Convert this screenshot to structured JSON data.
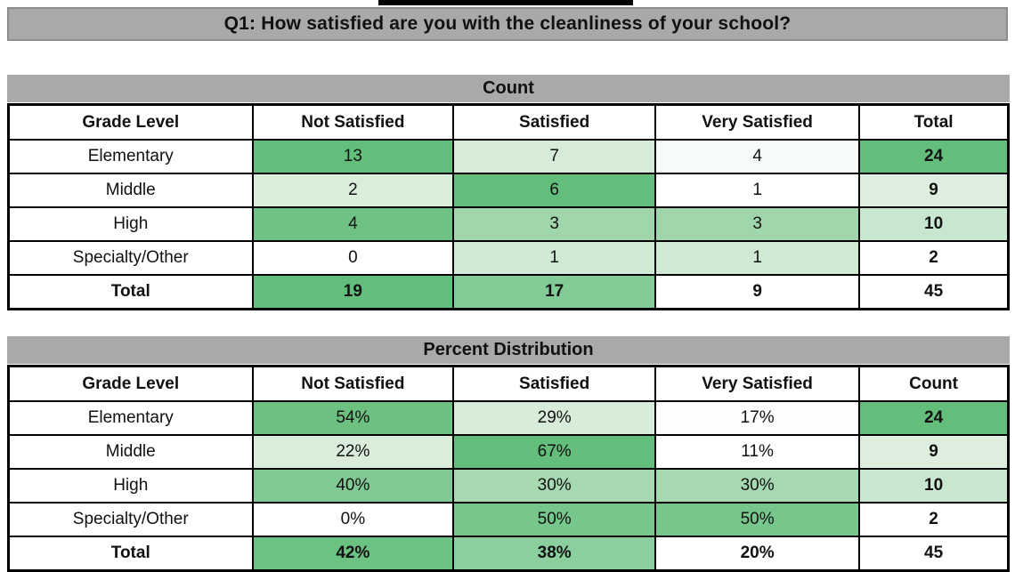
{
  "decor": {
    "top_strip_color": "#000000",
    "bottom_strip_color": "#d9d9d9",
    "band_gray": "#a9a9a9",
    "accent_green": "#63be7b"
  },
  "title_bar": {
    "text": "Q1: How satisfied are you with the cleanliness of your school?"
  },
  "count_table": {
    "title": "Count",
    "columns": [
      "Grade Level",
      "Not Satisfied",
      "Satisfied",
      "Very Satisfied",
      "Total"
    ],
    "rows": [
      {
        "label": "Elementary",
        "v1": "13",
        "v2": "7",
        "v3": "4",
        "v4": "24",
        "b1": "#63be7b",
        "b2": "#d6ebd8",
        "b3": "#f7fbf8",
        "b4": "#63be7b"
      },
      {
        "label": "Middle",
        "v1": "2",
        "v2": "6",
        "v3": "1",
        "v4": "9",
        "b1": "#daedda",
        "b2": "#63be7b",
        "b3": "#ffffff",
        "b4": "#ddeede"
      },
      {
        "label": "High",
        "v1": "4",
        "v2": "3",
        "v3": "3",
        "v4": "10",
        "b1": "#6ec384",
        "b2": "#a0d6ab",
        "b3": "#a0d6ab",
        "b4": "#c9e6ce"
      },
      {
        "label": "Specialty/Other",
        "v1": "0",
        "v2": "1",
        "v3": "1",
        "v4": "2",
        "b1": "#ffffff",
        "b2": "#cfe9d3",
        "b3": "#cfe9d3",
        "b4": "#ffffff"
      },
      {
        "label": "Total",
        "v1": "19",
        "v2": "17",
        "v3": "9",
        "v4": "45",
        "b1": "#63be7b",
        "b2": "#83cb96",
        "b3": "#ffffff",
        "b4": "#ffffff"
      }
    ]
  },
  "percent_table": {
    "title": "Percent Distribution",
    "columns": [
      "Grade Level",
      "Not Satisfied",
      "Satisfied",
      "Very Satisfied",
      "Count"
    ],
    "rows": [
      {
        "label": "Elementary",
        "v1": "54%",
        "v2": "29%",
        "v3": "17%",
        "v4": "24",
        "b1": "#6cc181",
        "b2": "#d8ecda",
        "b3": "#fdfefd",
        "b4": "#63be7b"
      },
      {
        "label": "Middle",
        "v1": "22%",
        "v2": "67%",
        "v3": "11%",
        "v4": "9",
        "b1": "#daedda",
        "b2": "#63be7b",
        "b3": "#ffffff",
        "b4": "#ddeede"
      },
      {
        "label": "High",
        "v1": "40%",
        "v2": "30%",
        "v3": "30%",
        "v4": "10",
        "b1": "#82ca95",
        "b2": "#a6d8b1",
        "b3": "#a6d8b1",
        "b4": "#c9e6ce"
      },
      {
        "label": "Specialty/Other",
        "v1": "0%",
        "v2": "50%",
        "v3": "50%",
        "v4": "2",
        "b1": "#ffffff",
        "b2": "#77c68c",
        "b3": "#77c68c",
        "b4": "#ffffff"
      },
      {
        "label": "Total",
        "v1": "42%",
        "v2": "38%",
        "v3": "20%",
        "v4": "45",
        "b1": "#6cc282",
        "b2": "#8ccf9e",
        "b3": "#ffffff",
        "b4": "#ffffff"
      }
    ]
  }
}
